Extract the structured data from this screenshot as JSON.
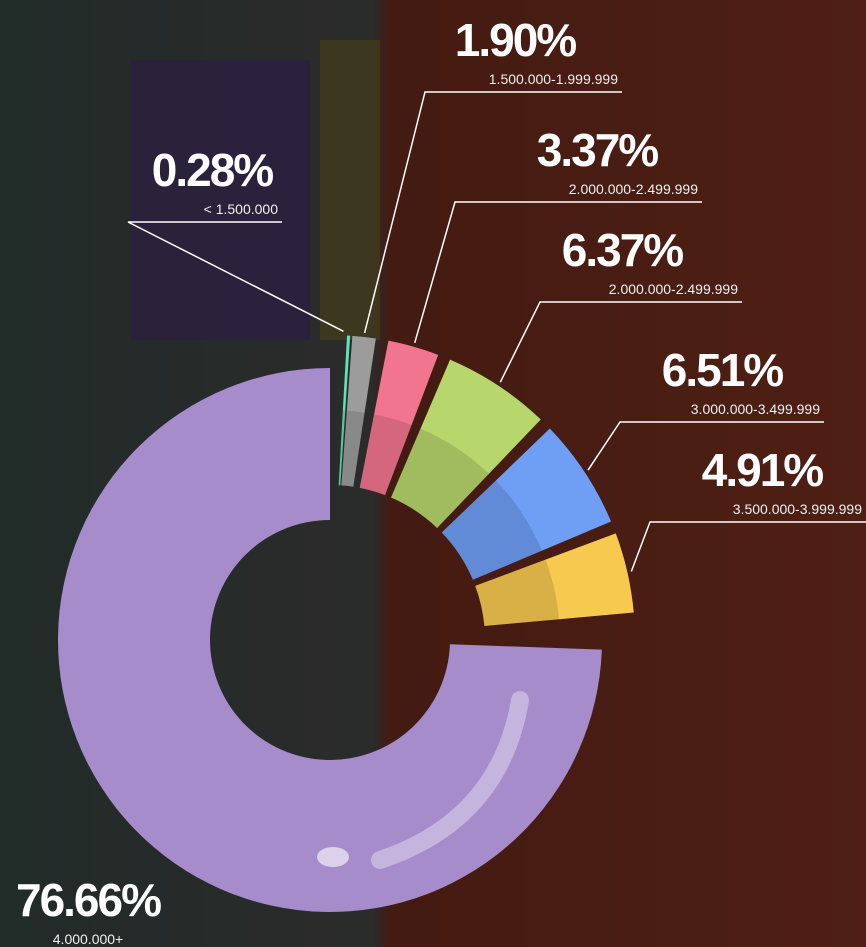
{
  "chart_data": {
    "type": "donut",
    "categories": [
      "< 1.500.000",
      "1.500.000-1.999.999",
      "2.000.000-2.499.999",
      "2.000.000-2.499.999",
      "3.000.000-3.499.999",
      "3.500.000-3.999.999",
      "4.000.000+"
    ],
    "values": [
      0.28,
      1.9,
      3.37,
      6.37,
      6.51,
      4.91,
      76.66
    ],
    "value_labels": [
      "0.28%",
      "1.90%",
      "3.37%",
      "6.37%",
      "6.51%",
      "4.91%",
      "76.66%"
    ],
    "colors": [
      "#5fe3b4",
      "#9c9c9c",
      "#f27590",
      "#b7d66c",
      "#6f9ef5",
      "#f8c94f",
      "#a68ccb"
    ]
  }
}
